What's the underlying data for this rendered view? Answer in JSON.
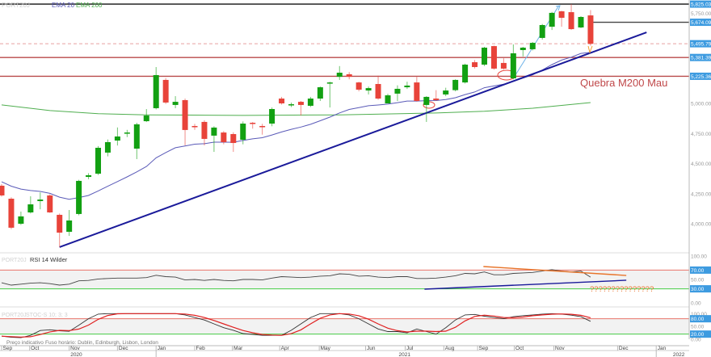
{
  "header": {
    "instrument": "PORT20J",
    "ema20_label": "EMA 20",
    "ema200_label": "EMA 200"
  },
  "colors": {
    "up": "#12a012",
    "down": "#e8433a",
    "ema20": "#5a5ab8",
    "ema200": "#4fae4f",
    "trend": "#1a1a9a",
    "hline": "#b94a4a",
    "label_bg": "#3d9be0"
  },
  "chart_data": {
    "type": "candlestick",
    "ylim": [
      3780,
      5835
    ],
    "yticks": [
      "5,750.00",
      "5,000.00",
      "4,750.00",
      "4,500.00",
      "4,250.00",
      "4,000.00"
    ],
    "ytick_values": [
      5750,
      5000,
      4750,
      4500,
      4250,
      4000
    ],
    "candles": [
      [
        4316,
        4330,
        4225,
        4235
      ],
      [
        4208,
        4220,
        3955,
        3967
      ],
      [
        4000,
        4101,
        3990,
        4061
      ],
      [
        4094,
        4228,
        4085,
        4161
      ],
      [
        4188,
        4260,
        4120,
        4201
      ],
      [
        4235,
        4245,
        4090,
        4094
      ],
      [
        4074,
        4085,
        3806,
        3926
      ],
      [
        3933,
        4114,
        3899,
        4027
      ],
      [
        4081,
        4365,
        4070,
        4356
      ],
      [
        4389,
        4420,
        4370,
        4403
      ],
      [
        4416,
        4645,
        4405,
        4631
      ],
      [
        4591,
        4700,
        4560,
        4678
      ],
      [
        4691,
        4800,
        4650,
        4725
      ],
      [
        4752,
        4780,
        4720,
        4758
      ],
      [
        4624,
        4839,
        4537,
        4826
      ],
      [
        4852,
        4953,
        4845,
        4899
      ],
      [
        4960,
        5302,
        4950,
        5235
      ],
      [
        5195,
        5210,
        4995,
        5007
      ],
      [
        4987,
        5060,
        4960,
        5013
      ],
      [
        5027,
        5040,
        4651,
        4779
      ],
      [
        4812,
        4830,
        4780,
        4805
      ],
      [
        4846,
        4860,
        4651,
        4705
      ],
      [
        4732,
        4810,
        4597,
        4799
      ],
      [
        4758,
        4770,
        4660,
        4678
      ],
      [
        4745,
        4760,
        4597,
        4671
      ],
      [
        4698,
        4850,
        4660,
        4832
      ],
      [
        4839,
        4845,
        4790,
        4830
      ],
      [
        4812,
        4830,
        4740,
        4805
      ],
      [
        4832,
        4966,
        4810,
        4953
      ],
      [
        5040,
        5054,
        4990,
        5000
      ],
      [
        4987,
        5007,
        4970,
        4993
      ],
      [
        5013,
        5020,
        4899,
        4987
      ],
      [
        4980,
        5054,
        4970,
        5040
      ],
      [
        5040,
        5140,
        5020,
        5134
      ],
      [
        5168,
        5180,
        4966,
        5174
      ],
      [
        5221,
        5310,
        5195,
        5255
      ],
      [
        5242,
        5260,
        5200,
        5221
      ],
      [
        5174,
        5180,
        5100,
        5114
      ],
      [
        5107,
        5140,
        5074,
        5127
      ],
      [
        5161,
        5230,
        5030,
        5040
      ],
      [
        5000,
        5080,
        5000,
        5067
      ],
      [
        5081,
        5150,
        5020,
        5121
      ],
      [
        5134,
        5180,
        5120,
        5148
      ],
      [
        5174,
        5220,
        5015,
        5020
      ],
      [
        4987,
        5060,
        4846,
        5054
      ],
      [
        5040,
        5110,
        5020,
        5027
      ],
      [
        5074,
        5130,
        5060,
        5107
      ],
      [
        5110,
        5200,
        5100,
        5195
      ],
      [
        5174,
        5330,
        5165,
        5322
      ],
      [
        5342,
        5360,
        5290,
        5302
      ],
      [
        5322,
        5470,
        5310,
        5463
      ],
      [
        5476,
        5480,
        5280,
        5289
      ],
      [
        5336,
        5375,
        5280,
        5289
      ],
      [
        5208,
        5490,
        5200,
        5416
      ],
      [
        5443,
        5470,
        5390,
        5463
      ],
      [
        5450,
        5510,
        5440,
        5503
      ],
      [
        5544,
        5660,
        5530,
        5651
      ],
      [
        5637,
        5760,
        5610,
        5752
      ],
      [
        5765,
        5770,
        5637,
        5711
      ],
      [
        5758,
        5825,
        5610,
        5617
      ],
      [
        5631,
        5725,
        5625,
        5718
      ],
      [
        5731,
        5775,
        5480,
        5495
      ]
    ],
    "ema20_seed": 4360,
    "ema200": [
      [
        0,
        4987
      ],
      [
        5,
        4940
      ],
      [
        10,
        4915
      ],
      [
        15,
        4905
      ],
      [
        20,
        4903
      ],
      [
        25,
        4900
      ],
      [
        35,
        4905
      ],
      [
        45,
        4920
      ],
      [
        50,
        4935
      ],
      [
        55,
        4960
      ],
      [
        61,
        5007
      ]
    ],
    "hlines": [
      {
        "value": 5825.03,
        "label": "5,825.03",
        "style": "solid",
        "color": "#111111"
      },
      {
        "value": 5674.09,
        "label": "5,674.09",
        "style": "solid",
        "color": "#444444",
        "from": 61
      },
      {
        "value": 5495.79,
        "label": "5,495.79",
        "style": "dashed",
        "color": "#e8a0a0"
      },
      {
        "value": 5381.39,
        "label": "5,381.39",
        "style": "solid",
        "color": "#b94a4a"
      },
      {
        "value": 5225.36,
        "label": "5,225.36",
        "style": "solid",
        "color": "#b94a4a"
      }
    ],
    "trendline": [
      [
        6,
        3806
      ],
      [
        66.8,
        5590
      ]
    ],
    "arrow": [
      [
        53,
        5208
      ],
      [
        57.7,
        5810
      ]
    ],
    "annotation": "Quebra M200 Mau",
    "rsi": {
      "title": "RSI 14 Wilder",
      "levels": [
        70,
        30
      ],
      "ticks": [
        "100.00",
        "70.00",
        "50.00",
        "30.00",
        "0.00"
      ],
      "tick_values": [
        100,
        70,
        50,
        30,
        0
      ],
      "values": [
        43,
        38,
        40,
        42,
        43,
        41,
        38,
        40,
        47,
        48,
        51,
        52,
        53,
        53,
        53,
        54,
        59,
        56,
        55,
        49,
        50,
        48,
        50,
        48,
        47,
        50,
        50,
        49,
        53,
        56,
        55,
        54,
        55,
        57,
        58,
        62,
        61,
        57,
        58,
        55,
        54,
        56,
        56,
        52,
        52,
        53,
        55,
        58,
        63,
        62,
        66,
        60,
        60,
        63,
        64,
        65,
        68,
        71,
        68,
        66,
        68,
        55
      ],
      "resistance": [
        [
          49.9,
          77.6
        ],
        [
          64.7,
          58.6
        ]
      ],
      "support": [
        [
          43.8,
          29.3
        ],
        [
          64.7,
          48.3
        ]
      ],
      "note": "???????????????"
    },
    "stoch": {
      "title": "STOC-S 10; 3; 3",
      "levels": [
        80,
        20
      ],
      "ticks": [
        "100.00",
        "80.00",
        "50.00",
        "20.00",
        "0.00"
      ],
      "tick_values": [
        100,
        80,
        50,
        20,
        0
      ],
      "k": [
        12,
        8,
        6,
        15,
        34,
        37,
        33,
        31,
        55,
        80,
        98,
        100,
        100,
        100,
        100,
        100,
        100,
        100,
        100,
        95,
        85,
        75,
        60,
        45,
        35,
        22,
        19,
        15,
        15,
        15,
        35,
        60,
        85,
        100,
        100,
        100,
        95,
        80,
        60,
        40,
        30,
        30,
        25,
        40,
        30,
        20,
        45,
        75,
        95,
        97,
        90,
        85,
        80,
        88,
        92,
        95,
        98,
        100,
        98,
        94,
        88,
        70
      ]
    },
    "x_months": [
      {
        "label": "Sep",
        "idx": 0
      },
      {
        "label": "Oct",
        "idx": 2.9
      },
      {
        "label": "Nov",
        "idx": 7
      },
      {
        "label": "Dec",
        "idx": 12
      },
      {
        "label": "Jan",
        "idx": 16
      },
      {
        "label": "Feb",
        "idx": 20
      },
      {
        "label": "Mar",
        "idx": 23.9
      },
      {
        "label": "Apr",
        "idx": 28.8
      },
      {
        "label": "May",
        "idx": 32.9
      },
      {
        "label": "Jun",
        "idx": 37.7
      },
      {
        "label": "Jul",
        "idx": 41.8
      },
      {
        "label": "Aug",
        "idx": 45.8
      },
      {
        "label": "Sep",
        "idx": 49.3
      },
      {
        "label": "Oct",
        "idx": 53.1
      },
      {
        "label": "Nov",
        "idx": 57.2
      },
      {
        "label": "Dec",
        "idx": 63.8
      },
      {
        "label": "Jan",
        "idx": 67.8
      }
    ],
    "x_years": [
      {
        "label": "2020",
        "idx": 7.8
      },
      {
        "label": "2021",
        "idx": 41.8
      },
      {
        "label": "2022",
        "idx": 70.2
      }
    ]
  },
  "footer": {
    "price_note": "Preço indicativo",
    "timezone": "Fuso horário: Dublin, Edinburgh, Lisbon, London"
  }
}
